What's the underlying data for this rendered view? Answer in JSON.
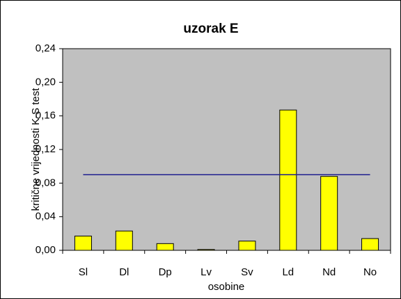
{
  "chart_data": {
    "type": "bar",
    "title": "uzorak E",
    "categories": [
      "Sl",
      "Dl",
      "Dp",
      "Lv",
      "Sv",
      "Ld",
      "Nd",
      "No"
    ],
    "values": [
      0.017,
      0.023,
      0.008,
      0.001,
      0.011,
      0.167,
      0.088,
      0.014
    ],
    "color": "#ffff00",
    "reference_line": {
      "value": 0.09,
      "color": "#1f1f8f"
    },
    "ylabel": "kritične vrijednosti K-S test",
    "xlabel": "osobine",
    "ylim": [
      0,
      0.24
    ],
    "yticks": [
      {
        "value": 0,
        "label": "0,00"
      },
      {
        "value": 0.04,
        "label": "0,04"
      },
      {
        "value": 0.08,
        "label": "0,08"
      },
      {
        "value": 0.12,
        "label": "0,12"
      },
      {
        "value": 0.16,
        "label": "0,16"
      },
      {
        "value": 0.2,
        "label": "0,20"
      },
      {
        "value": 0.24,
        "label": "0,24"
      }
    ],
    "plot_background": "#c0c0c0"
  }
}
